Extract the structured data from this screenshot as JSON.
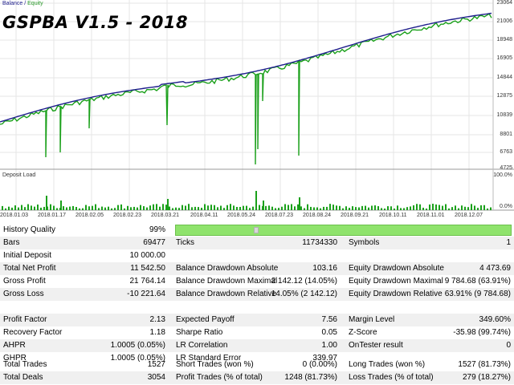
{
  "chart": {
    "legend_balance": "Balance",
    "legend_sep": " / ",
    "legend_equity": "Equity",
    "title": "GSPBA V1.5 - 2018",
    "y_ticks": [
      "23064",
      "21006",
      "18948",
      "16905",
      "14844",
      "12875",
      "10839",
      "8801",
      "6763",
      "4725"
    ],
    "deposit_label": "Deposit Load",
    "deposit_ticks": [
      "100.0%",
      "0.0%"
    ],
    "x_ticks": [
      "2018.01.03",
      "2018.01.17",
      "2018.02.05",
      "2018.02.23",
      "2018.03.21",
      "2018.04.11",
      "2018.05.24",
      "2018.07.23",
      "2018.08.24",
      "2018.09.21",
      "2018.10.11",
      "2018.11.01",
      "2018.12.07"
    ],
    "colors": {
      "balance": "#1e1e8c",
      "equity": "#1aa01a",
      "grid": "#e6e6e6"
    }
  },
  "report": {
    "history_quality": {
      "label": "History Quality",
      "value": "99%",
      "fill_percent": 99
    },
    "r1": [
      {
        "l": "Bars",
        "v": "69477"
      },
      {
        "l": "Ticks",
        "v": "11734330"
      },
      {
        "l": "Symbols",
        "v": "1"
      }
    ],
    "r2": [
      {
        "l": "Initial Deposit",
        "v": "10 000.00"
      }
    ],
    "r3": [
      {
        "l": "Total Net Profit",
        "v": "11 542.50"
      },
      {
        "l": "Balance Drawdown Absolute",
        "v": "103.16"
      },
      {
        "l": "Equity Drawdown Absolute",
        "v": "4 473.69"
      }
    ],
    "r4": [
      {
        "l": "Gross Profit",
        "v": "21 764.14"
      },
      {
        "l": "Balance Drawdown Maximal",
        "v": "2 142.12 (14.05%)"
      },
      {
        "l": "Equity Drawdown Maximal",
        "v": "9 784.68 (63.91%)"
      }
    ],
    "r5": [
      {
        "l": "Gross Loss",
        "v": "-10 221.64"
      },
      {
        "l": "Balance Drawdown Relative",
        "v": "14.05% (2 142.12)"
      },
      {
        "l": "Equity Drawdown Relative",
        "v": "63.91% (9 784.68)"
      }
    ],
    "r6": [
      {
        "l": "Profit Factor",
        "v": "2.13"
      },
      {
        "l": "Expected Payoff",
        "v": "7.56"
      },
      {
        "l": "Margin Level",
        "v": "349.60%"
      }
    ],
    "r7": [
      {
        "l": "Recovery Factor",
        "v": "1.18"
      },
      {
        "l": "Sharpe Ratio",
        "v": "0.05"
      },
      {
        "l": "Z-Score",
        "v": "-35.98 (99.74%)"
      }
    ],
    "r8": [
      {
        "l": "AHPR",
        "v": "1.0005 (0.05%)"
      },
      {
        "l": "LR Correlation",
        "v": "1.00"
      },
      {
        "l": "OnTester result",
        "v": "0"
      }
    ],
    "r9": [
      {
        "l": "GHPR",
        "v": "1.0005 (0.05%)"
      },
      {
        "l": "LR Standard Error",
        "v": "339.97"
      }
    ],
    "r10": [
      {
        "l": "Total Trades",
        "v": "1527"
      },
      {
        "l": "Short Trades (won %)",
        "v": "0 (0.00%)"
      },
      {
        "l": "Long Trades (won %)",
        "v": "1527 (81.73%)"
      }
    ],
    "r11": [
      {
        "l": "Total Deals",
        "v": "3054"
      },
      {
        "l": "Profit Trades (% of total)",
        "v": "1248 (81.73%)"
      },
      {
        "l": "Loss Trades (% of total)",
        "v": "279 (18.27%)"
      }
    ]
  }
}
